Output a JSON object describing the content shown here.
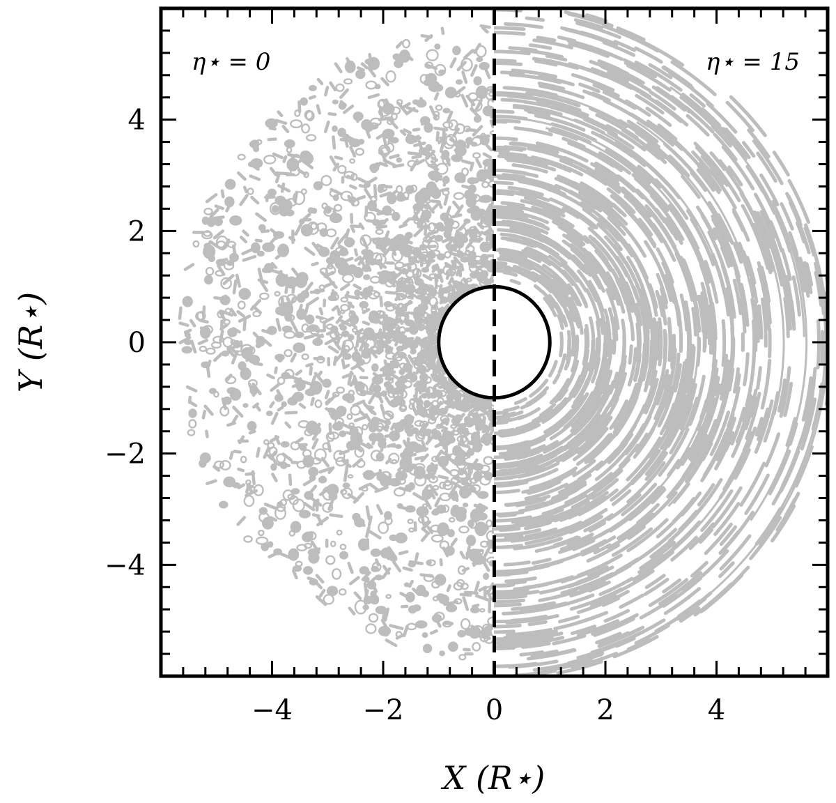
{
  "chart_data": {
    "type": "scatter",
    "title": "",
    "xlabel": "X (R⋆)",
    "ylabel": "Y (R⋆)",
    "xlim": [
      -6,
      6
    ],
    "ylim": [
      -6,
      6
    ],
    "xticks": [
      -4,
      -2,
      0,
      2,
      4
    ],
    "yticks": [
      -4,
      -2,
      0,
      2,
      4
    ],
    "xtick_labels": [
      "−4",
      "−2",
      "0",
      "2",
      "4"
    ],
    "ytick_labels": [
      "−4",
      "−2",
      "0",
      "2",
      "4"
    ],
    "minor_tick_step": 0.4,
    "grid": false,
    "divider_x": 0,
    "star_radius": 1,
    "panels": [
      {
        "label": "η⋆ = 0",
        "side": "left",
        "structure": "clumpy"
      },
      {
        "label": "η⋆ = 15",
        "side": "right",
        "structure": "radially streaked arcs"
      }
    ],
    "colors": {
      "contours": "#bdbdbd",
      "frame": "#000000",
      "star_fill": "#ffffff",
      "divider": "#000000"
    }
  }
}
